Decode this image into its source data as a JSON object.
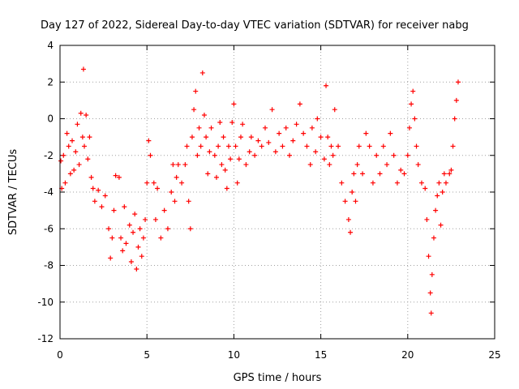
{
  "chart_data": {
    "type": "scatter",
    "title": "Day 127 of 2022, Sidereal Day-to-day VTEC variation (SDTVAR) for receiver nabg",
    "xlabel": "GPS time / hours",
    "ylabel": "SDTVAR / TECUs",
    "xlim": [
      0,
      25
    ],
    "ylim": [
      -12,
      4
    ],
    "xticks": [
      0,
      5,
      10,
      15,
      20,
      25
    ],
    "yticks": [
      -12,
      -10,
      -8,
      -6,
      -4,
      -2,
      0,
      2,
      4
    ],
    "xtick_labels": [
      "0",
      "5",
      "10",
      "15",
      "20",
      "25"
    ],
    "ytick_labels": [
      "-12",
      "-10",
      "-8",
      "-6",
      "-4",
      "-2",
      "0",
      "2",
      "4"
    ],
    "grid": true,
    "marker": "+",
    "series": [
      {
        "name": "SDTVAR",
        "color": "#ff0000",
        "points": [
          [
            0.05,
            -2.3
          ],
          [
            0.1,
            -3.8
          ],
          [
            0.2,
            -2.0
          ],
          [
            0.3,
            -3.5
          ],
          [
            0.4,
            -0.8
          ],
          [
            0.5,
            -1.5
          ],
          [
            0.6,
            -3.0
          ],
          [
            0.7,
            -1.2
          ],
          [
            0.8,
            -2.8
          ],
          [
            0.9,
            -1.8
          ],
          [
            1.0,
            -0.3
          ],
          [
            1.1,
            -2.5
          ],
          [
            1.2,
            0.3
          ],
          [
            1.3,
            -1.0
          ],
          [
            1.35,
            2.7
          ],
          [
            1.4,
            -1.5
          ],
          [
            1.5,
            0.2
          ],
          [
            1.6,
            -2.2
          ],
          [
            1.7,
            -1.0
          ],
          [
            1.8,
            -3.2
          ],
          [
            1.9,
            -3.8
          ],
          [
            2.0,
            -4.5
          ],
          [
            2.2,
            -3.9
          ],
          [
            2.4,
            -4.8
          ],
          [
            2.6,
            -4.2
          ],
          [
            2.8,
            -6.0
          ],
          [
            2.9,
            -7.6
          ],
          [
            3.0,
            -6.5
          ],
          [
            3.1,
            -5.0
          ],
          [
            3.2,
            -3.1
          ],
          [
            3.4,
            -3.2
          ],
          [
            3.5,
            -6.5
          ],
          [
            3.6,
            -7.2
          ],
          [
            3.7,
            -4.8
          ],
          [
            3.8,
            -6.8
          ],
          [
            4.0,
            -5.8
          ],
          [
            4.1,
            -7.8
          ],
          [
            4.2,
            -6.2
          ],
          [
            4.3,
            -5.2
          ],
          [
            4.4,
            -8.2
          ],
          [
            4.5,
            -7.0
          ],
          [
            4.6,
            -6.0
          ],
          [
            4.7,
            -7.5
          ],
          [
            4.8,
            -6.5
          ],
          [
            4.9,
            -5.5
          ],
          [
            5.0,
            -3.5
          ],
          [
            5.1,
            -1.2
          ],
          [
            5.2,
            -2.0
          ],
          [
            5.4,
            -3.5
          ],
          [
            5.5,
            -5.5
          ],
          [
            5.6,
            -3.8
          ],
          [
            5.8,
            -6.5
          ],
          [
            6.0,
            -5.0
          ],
          [
            6.2,
            -6.0
          ],
          [
            6.4,
            -4.0
          ],
          [
            6.5,
            -2.5
          ],
          [
            6.6,
            -4.5
          ],
          [
            6.7,
            -3.2
          ],
          [
            6.8,
            -2.5
          ],
          [
            7.0,
            -3.5
          ],
          [
            7.2,
            -2.5
          ],
          [
            7.3,
            -1.5
          ],
          [
            7.4,
            -4.5
          ],
          [
            7.5,
            -6.0
          ],
          [
            7.6,
            -1.0
          ],
          [
            7.7,
            0.5
          ],
          [
            7.8,
            1.5
          ],
          [
            7.9,
            -2.0
          ],
          [
            8.0,
            -0.5
          ],
          [
            8.1,
            -1.5
          ],
          [
            8.2,
            2.5
          ],
          [
            8.3,
            0.2
          ],
          [
            8.4,
            -1.0
          ],
          [
            8.5,
            -3.0
          ],
          [
            8.6,
            -1.8
          ],
          [
            8.7,
            -0.5
          ],
          [
            8.9,
            -2.0
          ],
          [
            9.0,
            -3.2
          ],
          [
            9.1,
            -1.5
          ],
          [
            9.2,
            -0.2
          ],
          [
            9.3,
            -2.5
          ],
          [
            9.4,
            -1.0
          ],
          [
            9.5,
            -2.8
          ],
          [
            9.6,
            -3.8
          ],
          [
            9.7,
            -1.5
          ],
          [
            9.8,
            -2.2
          ],
          [
            9.9,
            -0.2
          ],
          [
            10.0,
            0.8
          ],
          [
            10.1,
            -1.5
          ],
          [
            10.2,
            -3.5
          ],
          [
            10.3,
            -2.2
          ],
          [
            10.4,
            -1.0
          ],
          [
            10.5,
            -0.3
          ],
          [
            10.7,
            -2.5
          ],
          [
            10.9,
            -1.8
          ],
          [
            11.0,
            -1.0
          ],
          [
            11.2,
            -2.0
          ],
          [
            11.4,
            -1.2
          ],
          [
            11.6,
            -1.5
          ],
          [
            11.8,
            -0.5
          ],
          [
            12.0,
            -1.3
          ],
          [
            12.2,
            0.5
          ],
          [
            12.4,
            -1.8
          ],
          [
            12.6,
            -0.8
          ],
          [
            12.8,
            -1.5
          ],
          [
            13.0,
            -0.5
          ],
          [
            13.2,
            -2.0
          ],
          [
            13.4,
            -1.2
          ],
          [
            13.6,
            -0.3
          ],
          [
            13.8,
            0.8
          ],
          [
            14.0,
            -0.8
          ],
          [
            14.2,
            -1.5
          ],
          [
            14.4,
            -2.5
          ],
          [
            14.5,
            -0.5
          ],
          [
            14.7,
            -1.8
          ],
          [
            14.8,
            0.0
          ],
          [
            15.0,
            -1.0
          ],
          [
            15.2,
            -2.2
          ],
          [
            15.3,
            1.8
          ],
          [
            15.4,
            -1.0
          ],
          [
            15.5,
            -2.5
          ],
          [
            15.6,
            -1.5
          ],
          [
            15.7,
            -2.0
          ],
          [
            15.8,
            0.5
          ],
          [
            16.0,
            -1.5
          ],
          [
            16.2,
            -3.5
          ],
          [
            16.4,
            -4.5
          ],
          [
            16.6,
            -5.5
          ],
          [
            16.7,
            -6.2
          ],
          [
            16.8,
            -4.0
          ],
          [
            16.9,
            -3.0
          ],
          [
            17.0,
            -4.5
          ],
          [
            17.1,
            -2.5
          ],
          [
            17.2,
            -1.5
          ],
          [
            17.4,
            -3.0
          ],
          [
            17.6,
            -0.8
          ],
          [
            17.8,
            -1.5
          ],
          [
            18.0,
            -3.5
          ],
          [
            18.2,
            -2.0
          ],
          [
            18.4,
            -3.0
          ],
          [
            18.6,
            -1.5
          ],
          [
            18.8,
            -2.5
          ],
          [
            19.0,
            -0.8
          ],
          [
            19.2,
            -2.0
          ],
          [
            19.4,
            -3.5
          ],
          [
            19.6,
            -2.8
          ],
          [
            19.8,
            -3.0
          ],
          [
            20.0,
            -2.0
          ],
          [
            20.1,
            -0.5
          ],
          [
            20.2,
            0.8
          ],
          [
            20.3,
            1.5
          ],
          [
            20.4,
            0.0
          ],
          [
            20.5,
            -1.5
          ],
          [
            20.6,
            -2.5
          ],
          [
            20.8,
            -3.5
          ],
          [
            21.0,
            -3.8
          ],
          [
            21.1,
            -5.5
          ],
          [
            21.2,
            -7.5
          ],
          [
            21.3,
            -9.5
          ],
          [
            21.35,
            -10.6
          ],
          [
            21.4,
            -8.5
          ],
          [
            21.5,
            -6.5
          ],
          [
            21.6,
            -5.0
          ],
          [
            21.7,
            -4.2
          ],
          [
            21.8,
            -3.5
          ],
          [
            21.9,
            -5.8
          ],
          [
            22.0,
            -4.0
          ],
          [
            22.1,
            -3.0
          ],
          [
            22.2,
            -3.5
          ],
          [
            22.4,
            -3.0
          ],
          [
            22.5,
            -2.8
          ],
          [
            22.6,
            -1.5
          ],
          [
            22.7,
            0.0
          ],
          [
            22.8,
            1.0
          ],
          [
            22.9,
            2.0
          ]
        ]
      }
    ]
  }
}
